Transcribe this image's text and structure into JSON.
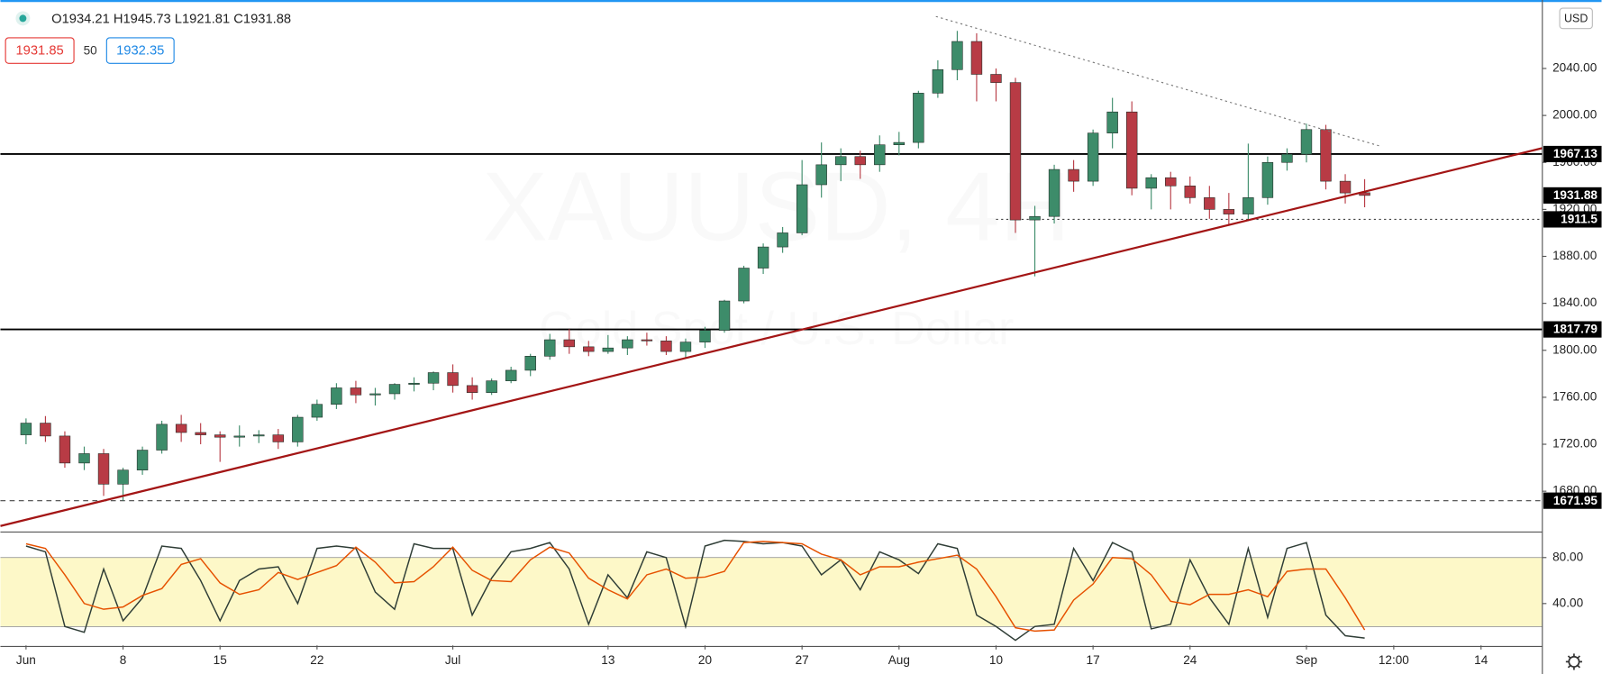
{
  "chart_data": {
    "type": "candlestick",
    "header": {
      "ohlc": "O1934.21 H1945.73 L1921.81 C1931.88",
      "bid": "1931.85",
      "spread": "50",
      "ask": "1932.35"
    },
    "currency": "USD",
    "watermark": "XAUUSD, 4H",
    "watermark_sub": "Gold Spot / U.S. Dollar",
    "up_color": "#3d8c6a",
    "down_color": "#b83b45",
    "x": [
      0,
      1,
      2,
      3,
      4,
      5,
      6,
      7,
      8,
      9,
      10,
      11,
      12,
      13,
      14,
      15,
      16,
      17,
      18,
      19,
      20,
      21,
      22,
      23,
      24,
      25,
      26,
      27,
      28,
      29,
      30,
      31,
      32,
      33,
      34,
      35,
      36,
      37,
      38,
      39,
      40,
      41,
      42,
      43,
      44,
      45,
      46,
      47,
      48,
      49,
      50,
      51,
      52,
      53,
      54,
      55,
      56,
      57,
      58,
      59,
      60,
      61,
      62,
      63,
      64,
      65,
      66,
      67,
      68,
      69
    ],
    "open": [
      1728,
      1738,
      1727,
      1704,
      1712,
      1686,
      1698,
      1715,
      1737,
      1730,
      1728,
      1726,
      1727,
      1728,
      1722,
      1743,
      1754,
      1768,
      1762,
      1763,
      1771,
      1772,
      1781,
      1770,
      1764,
      1774,
      1783,
      1795,
      1809,
      1803,
      1799,
      1802,
      1809,
      1808,
      1799,
      1807,
      1817,
      1842,
      1870,
      1888,
      1900,
      1941,
      1958,
      1965,
      1958,
      1975,
      1977,
      2019,
      2039,
      2063,
      2035,
      2028,
      1911,
      1914,
      1954,
      1944,
      1985,
      2003,
      1938,
      1947,
      1940,
      1930,
      1920,
      1916,
      1930,
      1960,
      1967,
      1988,
      1944,
      1934.21
    ],
    "high": [
      1742,
      1744,
      1731,
      1718,
      1716,
      1700,
      1718,
      1740,
      1745,
      1738,
      1731,
      1736,
      1732,
      1733,
      1745,
      1758,
      1772,
      1774,
      1768,
      1772,
      1777,
      1782,
      1788,
      1777,
      1776,
      1786,
      1797,
      1814,
      1818,
      1808,
      1813,
      1812,
      1815,
      1812,
      1810,
      1820,
      1843,
      1872,
      1891,
      1905,
      1962,
      1977,
      1972,
      1970,
      1983,
      1986,
      2021,
      2047,
      2072,
      2070,
      2040,
      2032,
      1923,
      1958,
      1962,
      1988,
      2015,
      2012,
      1950,
      1952,
      1948,
      1940,
      1934,
      1976,
      1965,
      1972,
      1993,
      1992,
      1950,
      1945.73
    ],
    "low": [
      1720,
      1722,
      1700,
      1698,
      1676,
      1672,
      1694,
      1712,
      1722,
      1720,
      1705,
      1718,
      1721,
      1716,
      1718,
      1740,
      1750,
      1755,
      1753,
      1758,
      1765,
      1766,
      1764,
      1758,
      1762,
      1772,
      1778,
      1792,
      1797,
      1795,
      1797,
      1796,
      1804,
      1796,
      1794,
      1802,
      1815,
      1840,
      1865,
      1883,
      1898,
      1930,
      1944,
      1946,
      1952,
      1966,
      1972,
      2015,
      2030,
      2012,
      2012,
      1900,
      1863,
      1908,
      1935,
      1940,
      1972,
      1932,
      1920,
      1920,
      1925,
      1912,
      1906,
      1910,
      1924,
      1953,
      1960,
      1937,
      1925,
      1921.81
    ],
    "close": [
      1738,
      1727,
      1704,
      1712,
      1686,
      1698,
      1715,
      1737,
      1730,
      1728,
      1726,
      1727,
      1728,
      1722,
      1743,
      1754,
      1768,
      1762,
      1763,
      1771,
      1772,
      1781,
      1770,
      1764,
      1774,
      1783,
      1795,
      1809,
      1803,
      1799,
      1802,
      1809,
      1808,
      1799,
      1807,
      1817,
      1842,
      1870,
      1888,
      1900,
      1941,
      1958,
      1965,
      1958,
      1975,
      1977,
      2019,
      2039,
      2063,
      2035,
      2028,
      1911,
      1914,
      1954,
      1944,
      1985,
      2003,
      1938,
      1947,
      1940,
      1930,
      1920,
      1916,
      1930,
      1960,
      1967,
      1988,
      1944,
      1934,
      1931.88
    ],
    "xlim": [
      -1.32,
      78.16
    ],
    "xticks": [
      {
        "value": 0,
        "label": "Jun"
      },
      {
        "value": 5,
        "label": "8"
      },
      {
        "value": 10,
        "label": "15"
      },
      {
        "value": 15,
        "label": "22"
      },
      {
        "value": 22,
        "label": "Jul"
      },
      {
        "value": 30,
        "label": "13"
      },
      {
        "value": 35,
        "label": "20"
      },
      {
        "value": 40,
        "label": "27"
      },
      {
        "value": 45,
        "label": "Aug"
      },
      {
        "value": 50,
        "label": "10"
      },
      {
        "value": 55,
        "label": "17"
      },
      {
        "value": 60,
        "label": "24"
      },
      {
        "value": 66,
        "label": "Sep"
      },
      {
        "value": 70.5,
        "label": "12:00"
      },
      {
        "value": 75,
        "label": "14"
      }
    ],
    "ylim": [
      1646.1,
      2095.7
    ],
    "yticks": [
      {
        "value": 1680,
        "label": "1680.00"
      },
      {
        "value": 1720,
        "label": "1720.00"
      },
      {
        "value": 1760,
        "label": "1760.00"
      },
      {
        "value": 1800,
        "label": "1800.00"
      },
      {
        "value": 1840,
        "label": "1840.00"
      },
      {
        "value": 1880,
        "label": "1880.00"
      },
      {
        "value": 1920,
        "label": "1920.00"
      },
      {
        "value": 1960,
        "label": "1960.00"
      },
      {
        "value": 2000,
        "label": "2000.00"
      },
      {
        "value": 2040,
        "label": "2040.00"
      }
    ],
    "levels": [
      {
        "value": 1967.13,
        "style": "solid",
        "color": "#000000"
      },
      {
        "value": 1911.5,
        "style": "dotted",
        "color": "#444444",
        "from": 50
      },
      {
        "value": 1817.79,
        "style": "solid",
        "color": "#000000"
      },
      {
        "value": 1671.95,
        "style": "dashed",
        "color": "#444444"
      }
    ],
    "trendlines": [
      {
        "x": [
          -1.32,
          78.16
        ],
        "y": [
          1650.4,
          1972.2
        ],
        "color": "#a31515",
        "style": "solid"
      },
      {
        "x": [
          46.9,
          69.8
        ],
        "y": [
          2084.3,
          1973.9
        ],
        "color": "#777777",
        "style": "dotted"
      }
    ],
    "indicator": {
      "type": "stochastic",
      "ylim": [
        3.6,
        101.3
      ],
      "yticks": [
        {
          "value": 40,
          "label": "40.00"
        },
        {
          "value": 80,
          "label": "80.00"
        }
      ],
      "band": [
        20,
        80
      ],
      "band_color": "#fdf8c8",
      "series": [
        {
          "color": "#2f3d36",
          "values": [
            90,
            85,
            20,
            15,
            70,
            25,
            45,
            90,
            88,
            60,
            25,
            60,
            70,
            72,
            40,
            88,
            90,
            88,
            50,
            35,
            92,
            88,
            88,
            30,
            62,
            85,
            88,
            93,
            70,
            22,
            65,
            45,
            85,
            80,
            20,
            90,
            95,
            94,
            92,
            93,
            90,
            65,
            78,
            52,
            85,
            78,
            66,
            92,
            88,
            30,
            20,
            8,
            20,
            22,
            88,
            60,
            93,
            85,
            18,
            22,
            78,
            45,
            22,
            88,
            28,
            88,
            93,
            30,
            12,
            10
          ]
        },
        {
          "color": "#e65100",
          "values": [
            92,
            88,
            65,
            40,
            35,
            37,
            47,
            53,
            74,
            79,
            58,
            48,
            52,
            67,
            61,
            67,
            73,
            89,
            76,
            58,
            59,
            72,
            89,
            69,
            60,
            59,
            78,
            89,
            84,
            62,
            52,
            44,
            65,
            70,
            62,
            63,
            68,
            93,
            94,
            93,
            92,
            83,
            78,
            65,
            72,
            72,
            76,
            79,
            82,
            70,
            46,
            19,
            16,
            17,
            43,
            57,
            80,
            79,
            65,
            42,
            39,
            48,
            48,
            52,
            46,
            68,
            70,
            70,
            45,
            17
          ]
        }
      ]
    }
  }
}
